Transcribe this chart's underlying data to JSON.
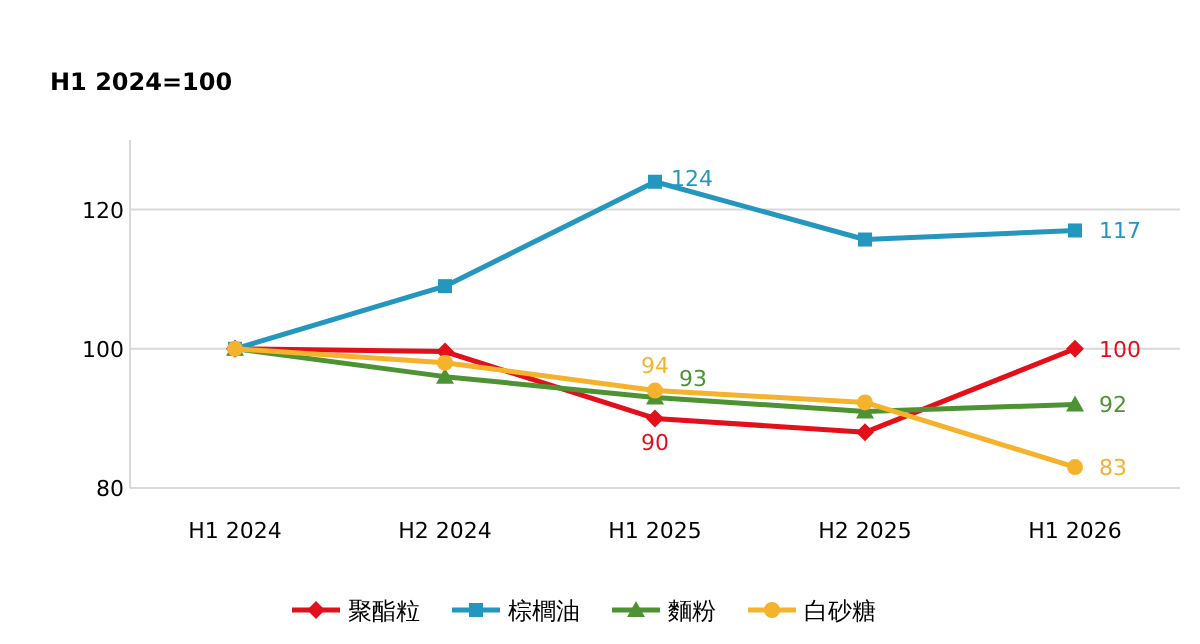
{
  "chart_data": {
    "type": "line",
    "title": "H1 2024=100",
    "categories": [
      "H1 2024",
      "H2 2024",
      "H1 2025",
      "H2 2025",
      "H1 2026"
    ],
    "series": [
      {
        "name": "聚酯粒",
        "color": "#e3101b",
        "marker": "diamond",
        "values": [
          100,
          99.6,
          90,
          88,
          100
        ],
        "value_labels": [
          null,
          null,
          "90",
          null,
          "100"
        ]
      },
      {
        "name": "棕櫚油",
        "color": "#2596be",
        "marker": "square",
        "values": [
          100,
          109,
          124,
          115.7,
          117
        ],
        "value_labels": [
          null,
          null,
          "124",
          null,
          "117"
        ]
      },
      {
        "name": "麵粉",
        "color": "#4d9333",
        "marker": "triangle",
        "values": [
          100,
          96,
          93,
          91,
          92
        ],
        "value_labels": [
          null,
          null,
          "93",
          null,
          "92"
        ]
      },
      {
        "name": "白砂糖",
        "color": "#f5b22c",
        "marker": "circle",
        "values": [
          100,
          98,
          94,
          92.3,
          83
        ],
        "value_labels": [
          null,
          null,
          "94",
          null,
          "83"
        ]
      }
    ],
    "ylim": [
      80,
      130
    ],
    "yticks": [
      80,
      100,
      120
    ],
    "grid": "y",
    "legend": "bottom"
  }
}
